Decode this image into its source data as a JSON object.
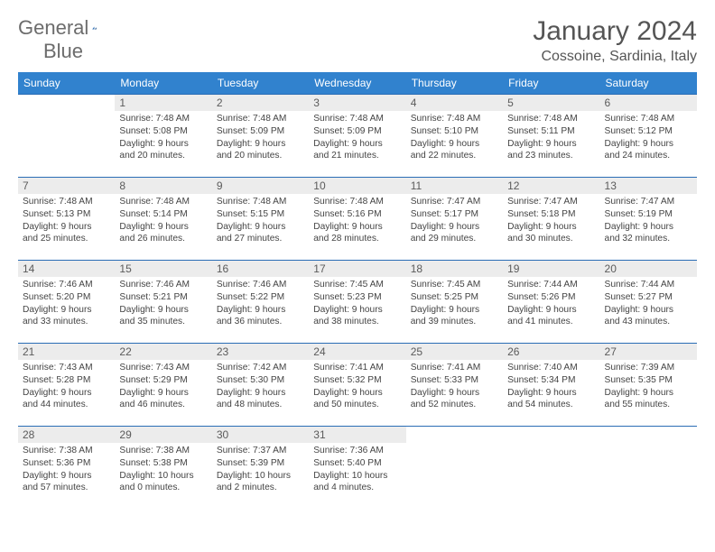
{
  "logo": {
    "word1": "General",
    "word2": "Blue"
  },
  "header": {
    "month": "January 2024",
    "location": "Cossoine, Sardinia, Italy"
  },
  "colors": {
    "header_bg": "#3182ce",
    "header_text": "#ffffff",
    "rule": "#2a6db5",
    "daynum_bg": "#ececec",
    "body_text": "#444444",
    "title_text": "#555555",
    "logo_grey": "#6c6c6c",
    "logo_blue": "#2a6db5"
  },
  "weekdays": [
    "Sunday",
    "Monday",
    "Tuesday",
    "Wednesday",
    "Thursday",
    "Friday",
    "Saturday"
  ],
  "weeks": [
    [
      null,
      {
        "n": "1",
        "sr": "Sunrise: 7:48 AM",
        "ss": "Sunset: 5:08 PM",
        "dl1": "Daylight: 9 hours",
        "dl2": "and 20 minutes."
      },
      {
        "n": "2",
        "sr": "Sunrise: 7:48 AM",
        "ss": "Sunset: 5:09 PM",
        "dl1": "Daylight: 9 hours",
        "dl2": "and 20 minutes."
      },
      {
        "n": "3",
        "sr": "Sunrise: 7:48 AM",
        "ss": "Sunset: 5:09 PM",
        "dl1": "Daylight: 9 hours",
        "dl2": "and 21 minutes."
      },
      {
        "n": "4",
        "sr": "Sunrise: 7:48 AM",
        "ss": "Sunset: 5:10 PM",
        "dl1": "Daylight: 9 hours",
        "dl2": "and 22 minutes."
      },
      {
        "n": "5",
        "sr": "Sunrise: 7:48 AM",
        "ss": "Sunset: 5:11 PM",
        "dl1": "Daylight: 9 hours",
        "dl2": "and 23 minutes."
      },
      {
        "n": "6",
        "sr": "Sunrise: 7:48 AM",
        "ss": "Sunset: 5:12 PM",
        "dl1": "Daylight: 9 hours",
        "dl2": "and 24 minutes."
      }
    ],
    [
      {
        "n": "7",
        "sr": "Sunrise: 7:48 AM",
        "ss": "Sunset: 5:13 PM",
        "dl1": "Daylight: 9 hours",
        "dl2": "and 25 minutes."
      },
      {
        "n": "8",
        "sr": "Sunrise: 7:48 AM",
        "ss": "Sunset: 5:14 PM",
        "dl1": "Daylight: 9 hours",
        "dl2": "and 26 minutes."
      },
      {
        "n": "9",
        "sr": "Sunrise: 7:48 AM",
        "ss": "Sunset: 5:15 PM",
        "dl1": "Daylight: 9 hours",
        "dl2": "and 27 minutes."
      },
      {
        "n": "10",
        "sr": "Sunrise: 7:48 AM",
        "ss": "Sunset: 5:16 PM",
        "dl1": "Daylight: 9 hours",
        "dl2": "and 28 minutes."
      },
      {
        "n": "11",
        "sr": "Sunrise: 7:47 AM",
        "ss": "Sunset: 5:17 PM",
        "dl1": "Daylight: 9 hours",
        "dl2": "and 29 minutes."
      },
      {
        "n": "12",
        "sr": "Sunrise: 7:47 AM",
        "ss": "Sunset: 5:18 PM",
        "dl1": "Daylight: 9 hours",
        "dl2": "and 30 minutes."
      },
      {
        "n": "13",
        "sr": "Sunrise: 7:47 AM",
        "ss": "Sunset: 5:19 PM",
        "dl1": "Daylight: 9 hours",
        "dl2": "and 32 minutes."
      }
    ],
    [
      {
        "n": "14",
        "sr": "Sunrise: 7:46 AM",
        "ss": "Sunset: 5:20 PM",
        "dl1": "Daylight: 9 hours",
        "dl2": "and 33 minutes."
      },
      {
        "n": "15",
        "sr": "Sunrise: 7:46 AM",
        "ss": "Sunset: 5:21 PM",
        "dl1": "Daylight: 9 hours",
        "dl2": "and 35 minutes."
      },
      {
        "n": "16",
        "sr": "Sunrise: 7:46 AM",
        "ss": "Sunset: 5:22 PM",
        "dl1": "Daylight: 9 hours",
        "dl2": "and 36 minutes."
      },
      {
        "n": "17",
        "sr": "Sunrise: 7:45 AM",
        "ss": "Sunset: 5:23 PM",
        "dl1": "Daylight: 9 hours",
        "dl2": "and 38 minutes."
      },
      {
        "n": "18",
        "sr": "Sunrise: 7:45 AM",
        "ss": "Sunset: 5:25 PM",
        "dl1": "Daylight: 9 hours",
        "dl2": "and 39 minutes."
      },
      {
        "n": "19",
        "sr": "Sunrise: 7:44 AM",
        "ss": "Sunset: 5:26 PM",
        "dl1": "Daylight: 9 hours",
        "dl2": "and 41 minutes."
      },
      {
        "n": "20",
        "sr": "Sunrise: 7:44 AM",
        "ss": "Sunset: 5:27 PM",
        "dl1": "Daylight: 9 hours",
        "dl2": "and 43 minutes."
      }
    ],
    [
      {
        "n": "21",
        "sr": "Sunrise: 7:43 AM",
        "ss": "Sunset: 5:28 PM",
        "dl1": "Daylight: 9 hours",
        "dl2": "and 44 minutes."
      },
      {
        "n": "22",
        "sr": "Sunrise: 7:43 AM",
        "ss": "Sunset: 5:29 PM",
        "dl1": "Daylight: 9 hours",
        "dl2": "and 46 minutes."
      },
      {
        "n": "23",
        "sr": "Sunrise: 7:42 AM",
        "ss": "Sunset: 5:30 PM",
        "dl1": "Daylight: 9 hours",
        "dl2": "and 48 minutes."
      },
      {
        "n": "24",
        "sr": "Sunrise: 7:41 AM",
        "ss": "Sunset: 5:32 PM",
        "dl1": "Daylight: 9 hours",
        "dl2": "and 50 minutes."
      },
      {
        "n": "25",
        "sr": "Sunrise: 7:41 AM",
        "ss": "Sunset: 5:33 PM",
        "dl1": "Daylight: 9 hours",
        "dl2": "and 52 minutes."
      },
      {
        "n": "26",
        "sr": "Sunrise: 7:40 AM",
        "ss": "Sunset: 5:34 PM",
        "dl1": "Daylight: 9 hours",
        "dl2": "and 54 minutes."
      },
      {
        "n": "27",
        "sr": "Sunrise: 7:39 AM",
        "ss": "Sunset: 5:35 PM",
        "dl1": "Daylight: 9 hours",
        "dl2": "and 55 minutes."
      }
    ],
    [
      {
        "n": "28",
        "sr": "Sunrise: 7:38 AM",
        "ss": "Sunset: 5:36 PM",
        "dl1": "Daylight: 9 hours",
        "dl2": "and 57 minutes."
      },
      {
        "n": "29",
        "sr": "Sunrise: 7:38 AM",
        "ss": "Sunset: 5:38 PM",
        "dl1": "Daylight: 10 hours",
        "dl2": "and 0 minutes."
      },
      {
        "n": "30",
        "sr": "Sunrise: 7:37 AM",
        "ss": "Sunset: 5:39 PM",
        "dl1": "Daylight: 10 hours",
        "dl2": "and 2 minutes."
      },
      {
        "n": "31",
        "sr": "Sunrise: 7:36 AM",
        "ss": "Sunset: 5:40 PM",
        "dl1": "Daylight: 10 hours",
        "dl2": "and 4 minutes."
      },
      null,
      null,
      null
    ]
  ]
}
